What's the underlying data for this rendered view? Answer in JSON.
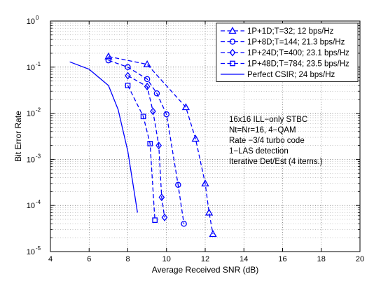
{
  "chart_data": {
    "type": "line",
    "xlabel": "Average Received SNR (dB)",
    "ylabel": "Bit Error Rate",
    "xlim": [
      4,
      20
    ],
    "ylim": [
      1e-05,
      1
    ],
    "yscale": "log",
    "grid": true,
    "legend_position": "top-right",
    "x_ticks": [
      "4",
      "6",
      "8",
      "10",
      "12",
      "14",
      "16",
      "18",
      "20"
    ],
    "y_ticks": [
      {
        "base": "10",
        "exp": "0"
      },
      {
        "base": "10",
        "exp": "-1"
      },
      {
        "base": "10",
        "exp": "-2"
      },
      {
        "base": "10",
        "exp": "-3"
      },
      {
        "base": "10",
        "exp": "-4"
      },
      {
        "base": "10",
        "exp": "-5"
      }
    ],
    "series": [
      {
        "name": "1P+1D;T=32; 12 bps/Hz",
        "marker": "triangle",
        "style": "dashed",
        "color": "#0000ff",
        "x": [
          7,
          9,
          11,
          11.5,
          12,
          12.2,
          12.4
        ],
        "y": [
          0.17,
          0.115,
          0.0135,
          0.0028,
          0.0003,
          7e-05,
          2.4e-05
        ]
      },
      {
        "name": "1P+8D;T=144; 21.3 bps/Hz",
        "marker": "circle",
        "style": "dashed",
        "color": "#0000ff",
        "x": [
          7,
          8,
          9,
          9.5,
          10,
          10.6,
          10.9
        ],
        "y": [
          0.14,
          0.1,
          0.055,
          0.027,
          0.0095,
          0.00028,
          4e-05
        ]
      },
      {
        "name": "1P+24D;T=400; 23.1 bps/Hz",
        "marker": "diamond",
        "style": "dashed",
        "color": "#0000ff",
        "x": [
          8,
          9,
          9.3,
          9.6,
          9.75,
          9.9
        ],
        "y": [
          0.065,
          0.038,
          0.011,
          0.002,
          0.00015,
          5.5e-05
        ]
      },
      {
        "name": "1P+48D;T=784; 23.5 bps/Hz",
        "marker": "square",
        "style": "dashed",
        "color": "#0000ff",
        "x": [
          8,
          8.8,
          9.15,
          9.4
        ],
        "y": [
          0.04,
          0.0085,
          0.0022,
          4.8e-05
        ]
      },
      {
        "name": "Perfect CSIR; 24 bps/Hz",
        "marker": "none",
        "style": "solid",
        "color": "#0000ff",
        "x": [
          5,
          6,
          7,
          7.5,
          8,
          8.5
        ],
        "y": [
          0.13,
          0.09,
          0.04,
          0.012,
          0.0015,
          7e-05
        ]
      }
    ],
    "annotations": [
      "16x16 ILL−only STBC",
      "Nt=Nr=16, 4−QAM",
      "Rate −3/4 turbo code",
      "1−LAS detection",
      "Iterative Det/Est (4 iterns.)"
    ]
  }
}
